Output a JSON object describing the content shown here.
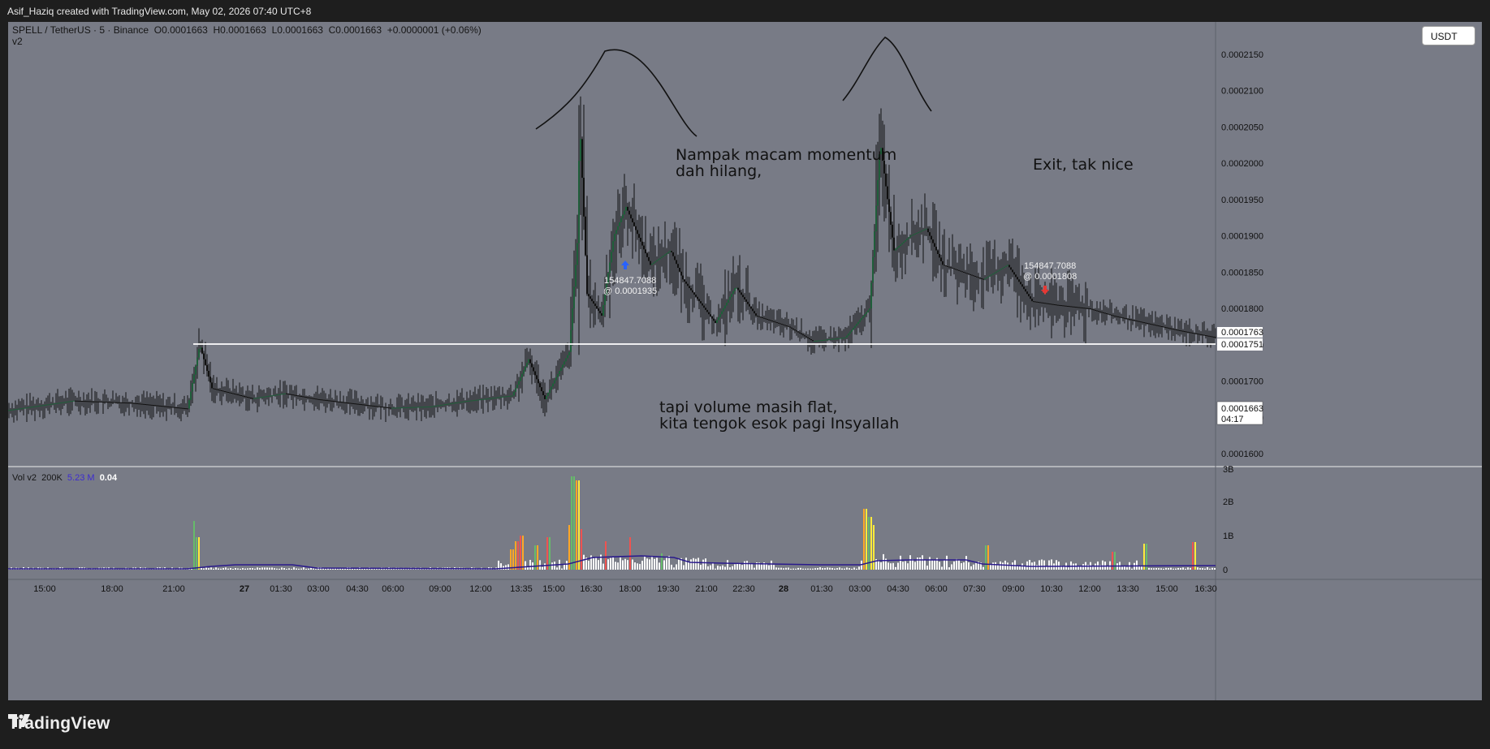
{
  "header": {
    "caption": "Asif_Haziq created with TradingView.com, May 02, 2026 07:40 UTC+8"
  },
  "legend": {
    "symbol": "SPELL / TetherUS · 5 · Binance",
    "open": "O0.0001663",
    "high": "H0.0001663",
    "low": "L0.0001663",
    "close": "C0.0001663",
    "change": "+0.0000001 (+0.06%)",
    "version": "v2"
  },
  "currency_button": "USDT",
  "annotations": {
    "momentum_line1": "Nampak macam momentum",
    "momentum_line2": "dah hilang,",
    "exit": "Exit, tak nice",
    "volume_line1": "tapi volume masih flat,",
    "volume_line2": "kita tengok esok pagi Insyallah"
  },
  "trades": [
    {
      "qty": "154847.7088",
      "price": "@ 0.0001935",
      "side": "buy"
    },
    {
      "qty": "154847.7088",
      "price": "@ 0.0001808",
      "side": "sell"
    }
  ],
  "price_labels": {
    "last": "0.0001763",
    "line": "0.0001751",
    "current": "0.0001663",
    "countdown": "04:17"
  },
  "volume": {
    "title": "Vol v2",
    "len": "200K",
    "ma": "5.23 M",
    "value": "0.04",
    "axis": [
      "3B",
      "2B",
      "1B",
      "0"
    ]
  },
  "footer": {
    "brand": "TradingView"
  },
  "chart_data": {
    "type": "candlestick",
    "symbol": "SPELL / TetherUS",
    "interval": "5",
    "y_ticks": [
      "0.0002150",
      "0.0002100",
      "0.0002050",
      "0.0002000",
      "0.0001950",
      "0.0001900",
      "0.0001850",
      "0.0001800",
      "0.0001750",
      "0.0001700",
      "0.0001650",
      "0.0001600"
    ],
    "x_ticks": [
      "15:00",
      "18:00",
      "21:00",
      "27",
      "01:30",
      "03:00",
      "04:30",
      "06:00",
      "09:00",
      "12:00",
      "13:35",
      "15:00",
      "16:30",
      "18:00",
      "19:30",
      "21:00",
      "22:30",
      "28",
      "01:30",
      "03:00",
      "04:30",
      "06:00",
      "07:30",
      "09:00",
      "10:30",
      "12:00",
      "13:30",
      "15:00",
      "16:30"
    ],
    "horizontal_line": 0.0001751,
    "price_path": [
      [
        0,
        0.000166
      ],
      [
        80,
        0.0001673
      ],
      [
        150,
        0.000167
      ],
      [
        220,
        0.0001662
      ],
      [
        235,
        0.000175
      ],
      [
        250,
        0.000169
      ],
      [
        300,
        0.0001676
      ],
      [
        340,
        0.0001683
      ],
      [
        380,
        0.0001675
      ],
      [
        470,
        0.0001663
      ],
      [
        520,
        0.0001665
      ],
      [
        560,
        0.0001672
      ],
      [
        620,
        0.000168
      ],
      [
        640,
        0.000173
      ],
      [
        660,
        0.0001675
      ],
      [
        690,
        0.000174
      ],
      [
        700,
        0.000189
      ],
      [
        703,
        0.000206
      ],
      [
        712,
        0.000182
      ],
      [
        730,
        0.000179
      ],
      [
        745,
        0.00019
      ],
      [
        760,
        0.000194
      ],
      [
        790,
        0.000186
      ],
      [
        815,
        0.000188
      ],
      [
        830,
        0.000184
      ],
      [
        870,
        0.000178
      ],
      [
        895,
        0.000183
      ],
      [
        920,
        0.000179
      ],
      [
        960,
        0.0001775
      ],
      [
        990,
        0.0001755
      ],
      [
        1030,
        0.000176
      ],
      [
        1060,
        0.00018
      ],
      [
        1073,
        0.000203
      ],
      [
        1090,
        0.000188
      ],
      [
        1110,
        0.00019
      ],
      [
        1130,
        0.000191
      ],
      [
        1150,
        0.000186
      ],
      [
        1200,
        0.000184
      ],
      [
        1230,
        0.000186
      ],
      [
        1260,
        0.000181
      ],
      [
        1290,
        0.0001805
      ],
      [
        1330,
        0.00018
      ],
      [
        1360,
        0.000179
      ],
      [
        1400,
        0.000178
      ],
      [
        1440,
        0.000177
      ],
      [
        1487,
        0.000176
      ]
    ],
    "ylabel": "",
    "xlabel": ""
  }
}
